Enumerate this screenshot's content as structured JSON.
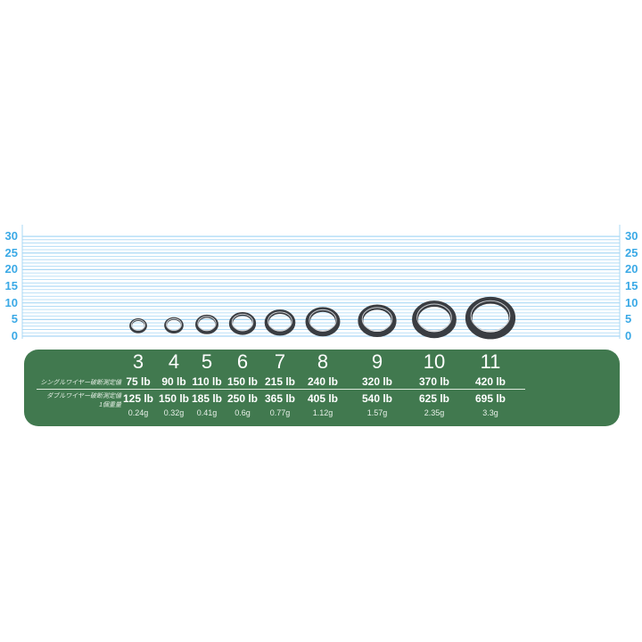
{
  "y_axis": {
    "ticks": [
      0,
      5,
      10,
      15,
      20,
      25,
      30
    ],
    "range": [
      0,
      30
    ],
    "minor_step": 1,
    "grid_color": "#a9d8f5",
    "label_color": "#3aa9e6"
  },
  "labels": {
    "single": "シングルワイヤー破断測定値",
    "double": "ダブルワイヤー破断測定値",
    "weight": "1個重量"
  },
  "panel_color": "#41794f",
  "sizes": [
    {
      "size": "3",
      "single": "75 lb",
      "double": "125 lb",
      "weight": "0.24g",
      "diameter_mm": 4.5
    },
    {
      "size": "4",
      "single": "90 lb",
      "double": "150 lb",
      "weight": "0.32g",
      "diameter_mm": 5
    },
    {
      "size": "5",
      "single": "110 lb",
      "double": "185 lb",
      "weight": "0.41g",
      "diameter_mm": 6
    },
    {
      "size": "6",
      "single": "150 lb",
      "double": "250 lb",
      "weight": "0.6g",
      "diameter_mm": 7
    },
    {
      "size": "7",
      "single": "215 lb",
      "double": "365 lb",
      "weight": "0.77g",
      "diameter_mm": 8
    },
    {
      "size": "8",
      "single": "240 lb",
      "double": "405 lb",
      "weight": "1.12g",
      "diameter_mm": 9
    },
    {
      "size": "9",
      "single": "320 lb",
      "double": "540 lb",
      "weight": "1.57g",
      "diameter_mm": 10
    },
    {
      "size": "10",
      "single": "370 lb",
      "double": "625 lb",
      "weight": "2.35g",
      "diameter_mm": 11.5
    },
    {
      "size": "11",
      "single": "420 lb",
      "double": "695 lb",
      "weight": "3.3g",
      "diameter_mm": 13
    }
  ]
}
